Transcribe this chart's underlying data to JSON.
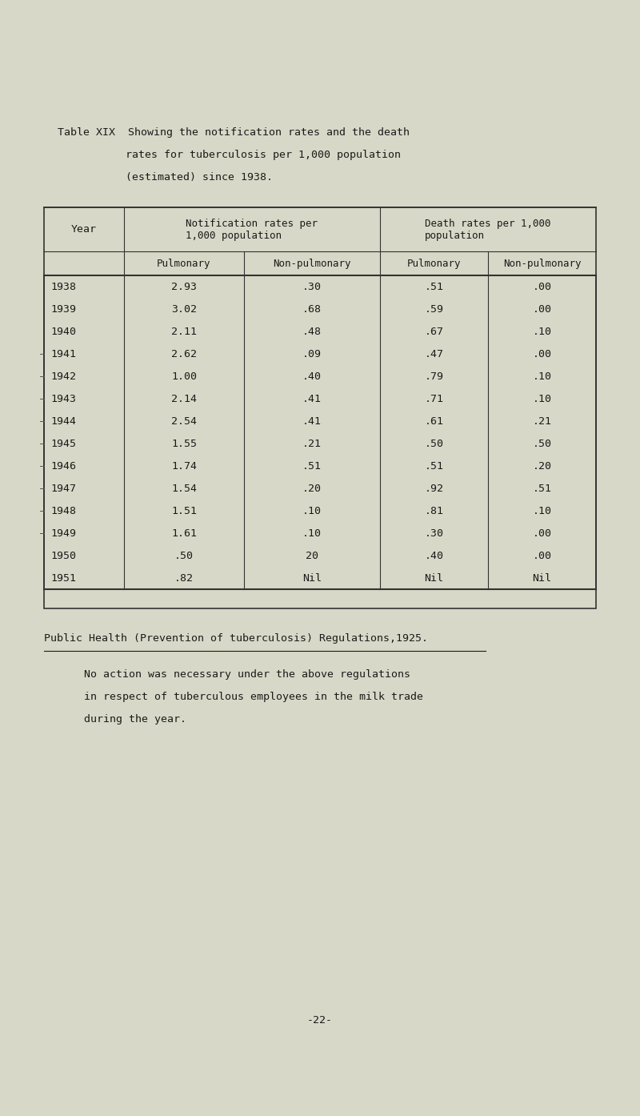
{
  "bg_color": "#d8d8c8",
  "title_line1": "Table XIX  Showing the notification rates and the death",
  "title_line2": "rates for tuberculosis per 1,000 population",
  "title_line3": "(estimated) since 1938.",
  "col_headers_top": [
    "Year",
    "Notification rates per\n1,000 population",
    "Death rates per 1,000\npopulation"
  ],
  "col_headers_sub": [
    "Pulmonary",
    "Non-pulmonary",
    "Pulmonary",
    "Non-pulmonary"
  ],
  "years": [
    "1938",
    "1939",
    "1940",
    "1941",
    "1942",
    "1943",
    "1944",
    "1945",
    "1946",
    "1947",
    "1948",
    "1949",
    "1950",
    "1951"
  ],
  "notif_pulm": [
    "2.93",
    "3.02",
    "2.11",
    "2.62",
    "1.00",
    "2.14",
    "2.54",
    "1.55",
    "1.74",
    "1.54",
    "1.51",
    "1.61",
    ".50",
    ".82"
  ],
  "notif_nonpulm": [
    ".30",
    ".68",
    ".48",
    ".09",
    ".40",
    ".41",
    ".41",
    ".21",
    ".51",
    ".20",
    ".10",
    ".10",
    "20",
    "Nil"
  ],
  "death_pulm": [
    ".51",
    ".59",
    ".67",
    ".47",
    ".79",
    ".71",
    ".61",
    ".50",
    ".51",
    ".92",
    ".81",
    ".30",
    ".40",
    "Nil"
  ],
  "death_nonpulm": [
    ".00",
    ".00",
    ".10",
    ".00",
    ".10",
    ".10",
    ".21",
    ".50",
    ".20",
    ".51",
    ".10",
    ".00",
    ".00",
    "Nil"
  ],
  "footer_heading": "Public Health (Prevention of tuberculosis) Regulations,1925.",
  "footer_para": "No action was necessary under the above regulations\nin respect of tuberculous employees in the milk trade\nduring the year.",
  "page_number": "-22-"
}
